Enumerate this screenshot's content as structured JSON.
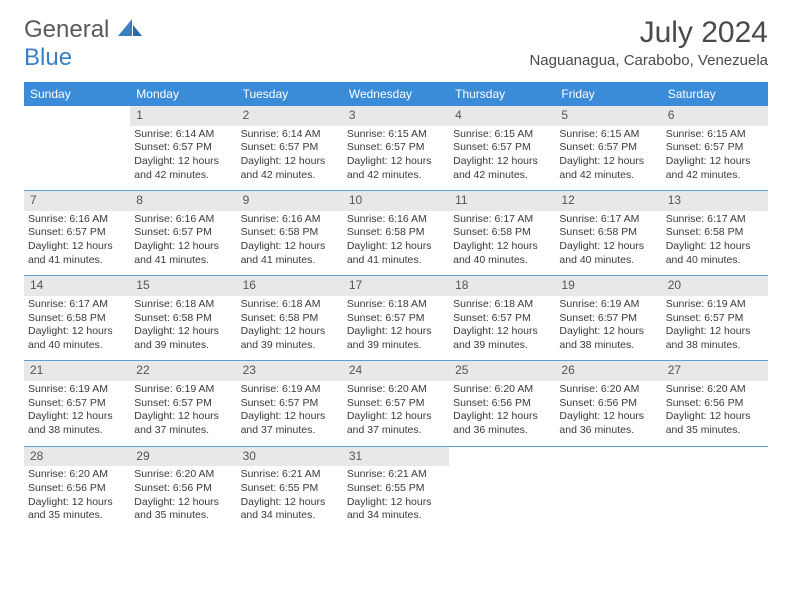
{
  "logo": {
    "text1": "General",
    "text2": "Blue"
  },
  "header": {
    "month": "July 2024",
    "location": "Naguanagua, Carabobo, Venezuela"
  },
  "colors": {
    "header_bg": "#3a8bd8",
    "header_text": "#ffffff",
    "daynum_bg": "#e8e8e8",
    "divider": "#5a9fd8",
    "logo_blue": "#3a7fc4"
  },
  "dayNames": [
    "Sunday",
    "Monday",
    "Tuesday",
    "Wednesday",
    "Thursday",
    "Friday",
    "Saturday"
  ],
  "startOffset": 1,
  "days": [
    {
      "n": 1,
      "sr": "6:14 AM",
      "ss": "6:57 PM",
      "dh": 12,
      "dm": 42
    },
    {
      "n": 2,
      "sr": "6:14 AM",
      "ss": "6:57 PM",
      "dh": 12,
      "dm": 42
    },
    {
      "n": 3,
      "sr": "6:15 AM",
      "ss": "6:57 PM",
      "dh": 12,
      "dm": 42
    },
    {
      "n": 4,
      "sr": "6:15 AM",
      "ss": "6:57 PM",
      "dh": 12,
      "dm": 42
    },
    {
      "n": 5,
      "sr": "6:15 AM",
      "ss": "6:57 PM",
      "dh": 12,
      "dm": 42
    },
    {
      "n": 6,
      "sr": "6:15 AM",
      "ss": "6:57 PM",
      "dh": 12,
      "dm": 42
    },
    {
      "n": 7,
      "sr": "6:16 AM",
      "ss": "6:57 PM",
      "dh": 12,
      "dm": 41
    },
    {
      "n": 8,
      "sr": "6:16 AM",
      "ss": "6:57 PM",
      "dh": 12,
      "dm": 41
    },
    {
      "n": 9,
      "sr": "6:16 AM",
      "ss": "6:58 PM",
      "dh": 12,
      "dm": 41
    },
    {
      "n": 10,
      "sr": "6:16 AM",
      "ss": "6:58 PM",
      "dh": 12,
      "dm": 41
    },
    {
      "n": 11,
      "sr": "6:17 AM",
      "ss": "6:58 PM",
      "dh": 12,
      "dm": 40
    },
    {
      "n": 12,
      "sr": "6:17 AM",
      "ss": "6:58 PM",
      "dh": 12,
      "dm": 40
    },
    {
      "n": 13,
      "sr": "6:17 AM",
      "ss": "6:58 PM",
      "dh": 12,
      "dm": 40
    },
    {
      "n": 14,
      "sr": "6:17 AM",
      "ss": "6:58 PM",
      "dh": 12,
      "dm": 40
    },
    {
      "n": 15,
      "sr": "6:18 AM",
      "ss": "6:58 PM",
      "dh": 12,
      "dm": 39
    },
    {
      "n": 16,
      "sr": "6:18 AM",
      "ss": "6:58 PM",
      "dh": 12,
      "dm": 39
    },
    {
      "n": 17,
      "sr": "6:18 AM",
      "ss": "6:57 PM",
      "dh": 12,
      "dm": 39
    },
    {
      "n": 18,
      "sr": "6:18 AM",
      "ss": "6:57 PM",
      "dh": 12,
      "dm": 39
    },
    {
      "n": 19,
      "sr": "6:19 AM",
      "ss": "6:57 PM",
      "dh": 12,
      "dm": 38
    },
    {
      "n": 20,
      "sr": "6:19 AM",
      "ss": "6:57 PM",
      "dh": 12,
      "dm": 38
    },
    {
      "n": 21,
      "sr": "6:19 AM",
      "ss": "6:57 PM",
      "dh": 12,
      "dm": 38
    },
    {
      "n": 22,
      "sr": "6:19 AM",
      "ss": "6:57 PM",
      "dh": 12,
      "dm": 37
    },
    {
      "n": 23,
      "sr": "6:19 AM",
      "ss": "6:57 PM",
      "dh": 12,
      "dm": 37
    },
    {
      "n": 24,
      "sr": "6:20 AM",
      "ss": "6:57 PM",
      "dh": 12,
      "dm": 37
    },
    {
      "n": 25,
      "sr": "6:20 AM",
      "ss": "6:56 PM",
      "dh": 12,
      "dm": 36
    },
    {
      "n": 26,
      "sr": "6:20 AM",
      "ss": "6:56 PM",
      "dh": 12,
      "dm": 36
    },
    {
      "n": 27,
      "sr": "6:20 AM",
      "ss": "6:56 PM",
      "dh": 12,
      "dm": 35
    },
    {
      "n": 28,
      "sr": "6:20 AM",
      "ss": "6:56 PM",
      "dh": 12,
      "dm": 35
    },
    {
      "n": 29,
      "sr": "6:20 AM",
      "ss": "6:56 PM",
      "dh": 12,
      "dm": 35
    },
    {
      "n": 30,
      "sr": "6:21 AM",
      "ss": "6:55 PM",
      "dh": 12,
      "dm": 34
    },
    {
      "n": 31,
      "sr": "6:21 AM",
      "ss": "6:55 PM",
      "dh": 12,
      "dm": 34
    }
  ],
  "labels": {
    "sunrise": "Sunrise:",
    "sunset": "Sunset:",
    "daylight_prefix": "Daylight:",
    "hours_word": "hours",
    "and_word": "and",
    "minutes_word": "minutes."
  }
}
